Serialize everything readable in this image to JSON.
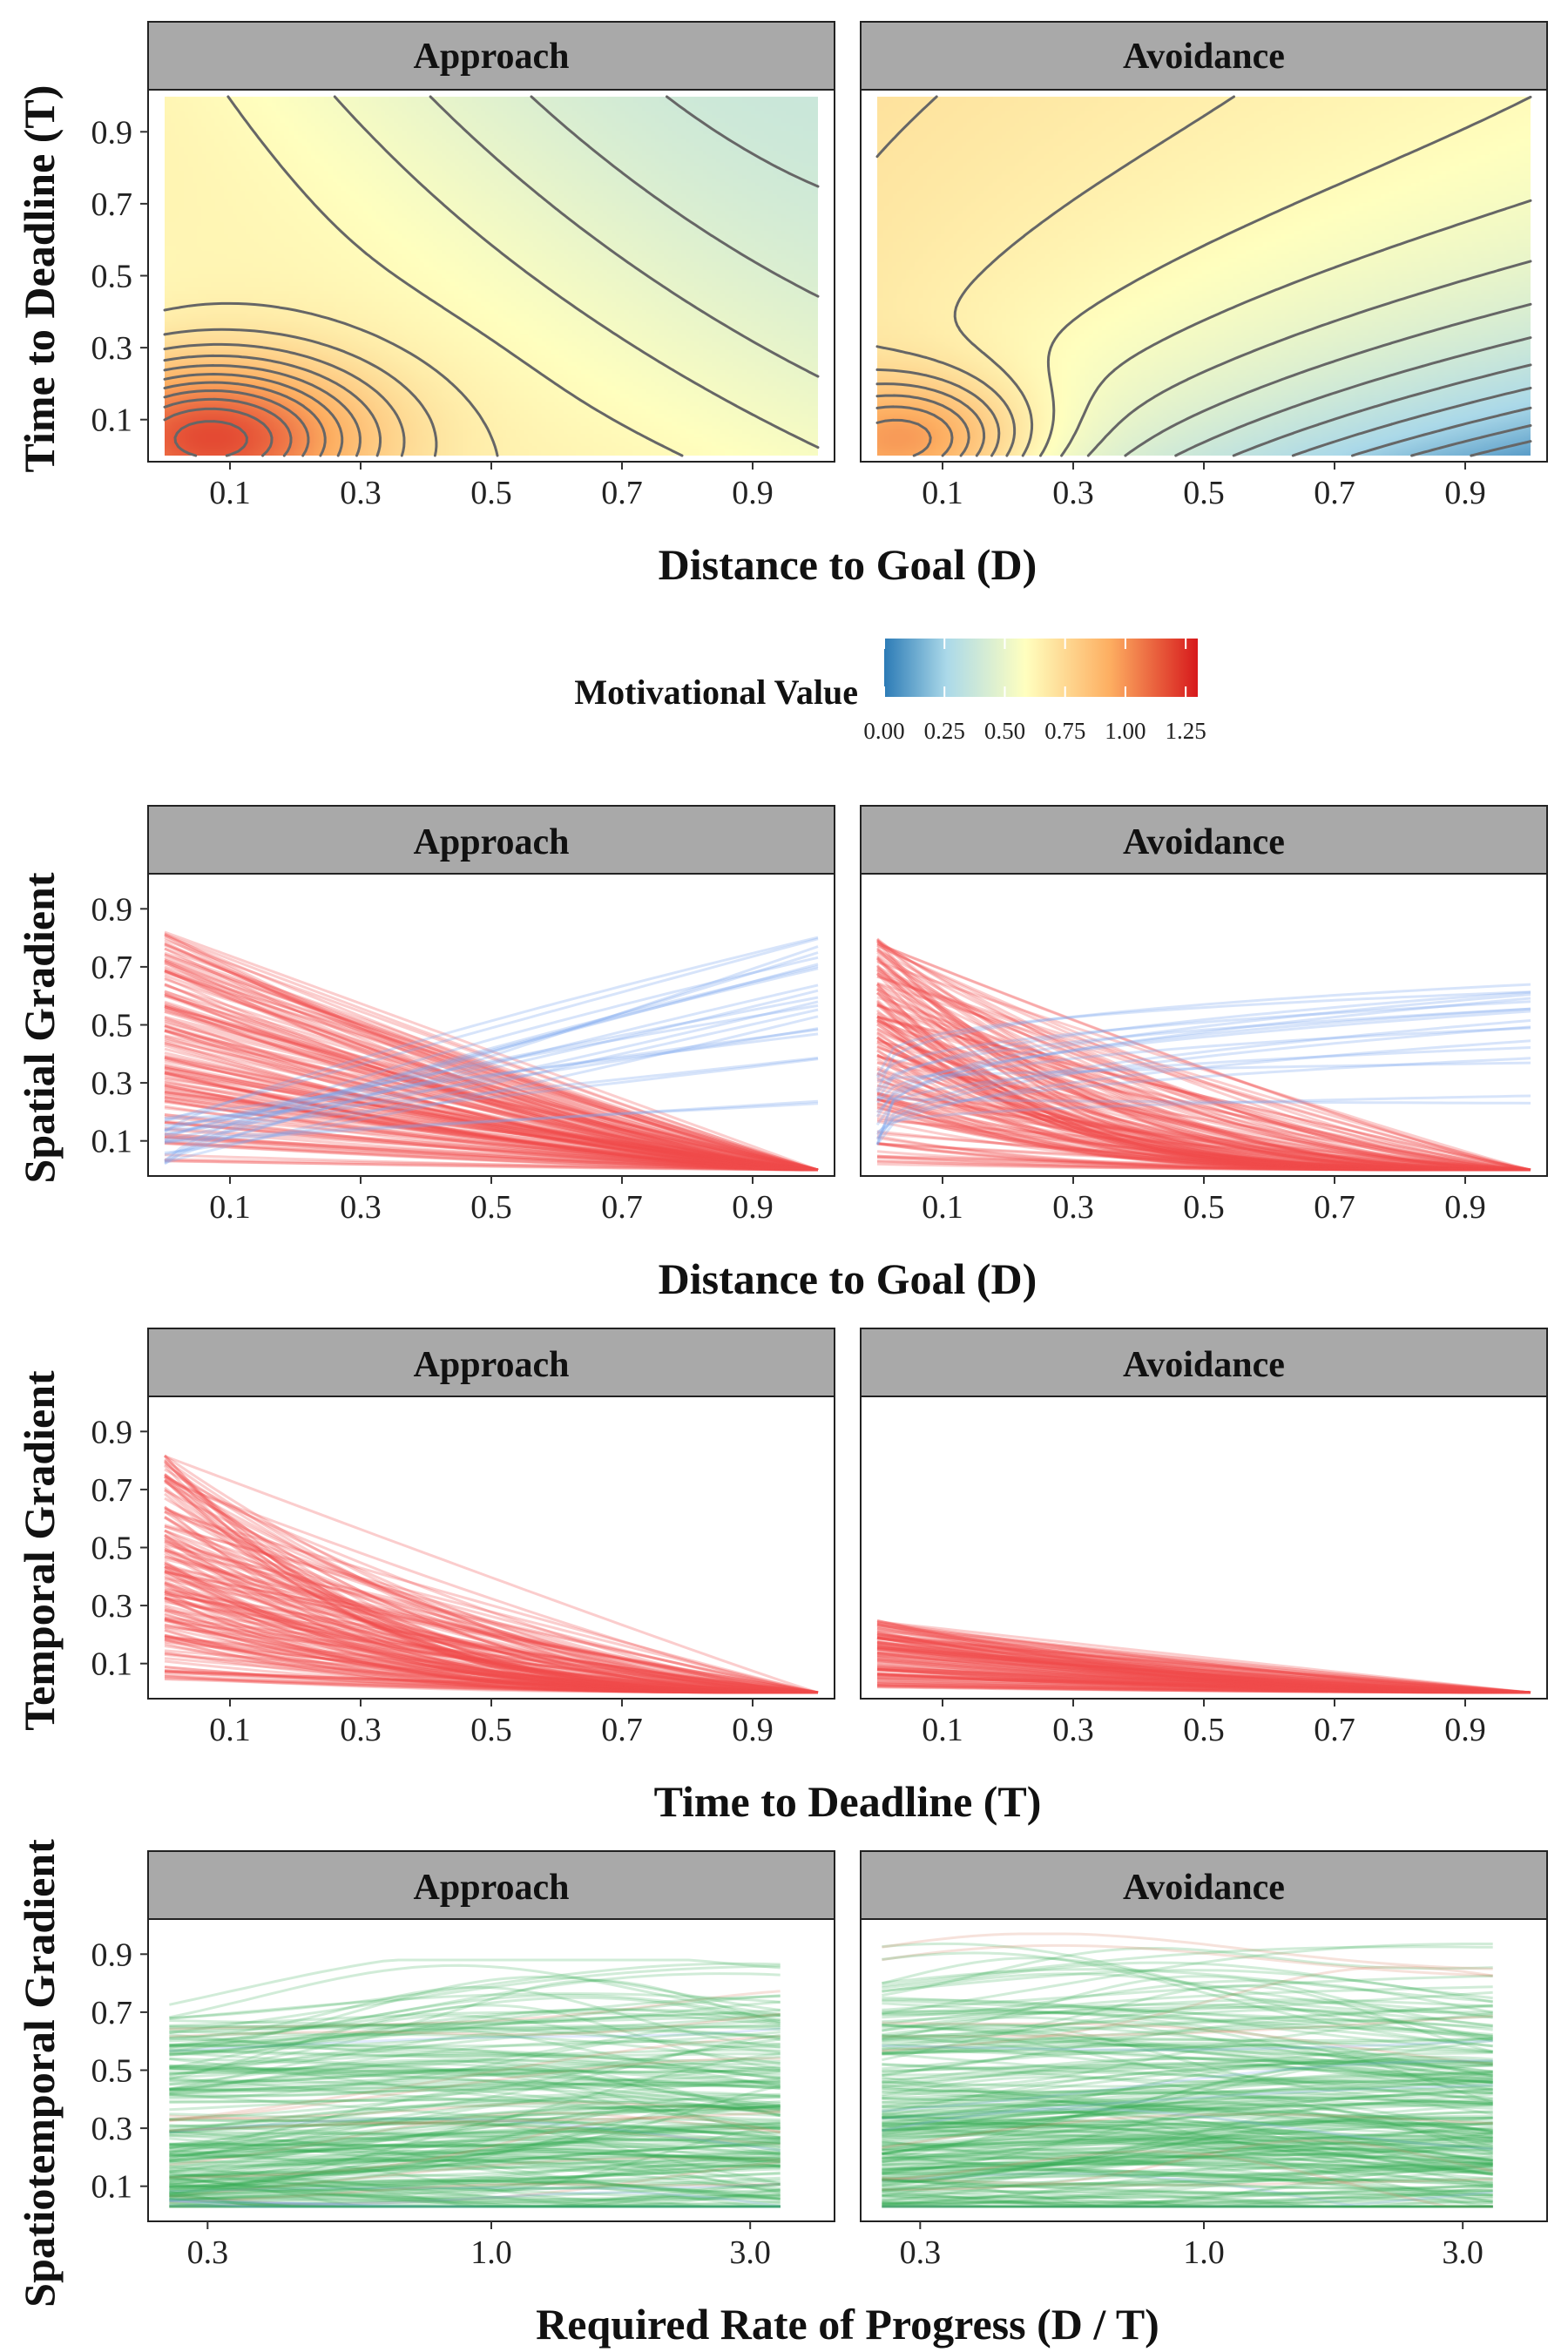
{
  "colors": {
    "strip_fill": "#a9a9a9",
    "contour": "#666666",
    "approach_line": "#f04d4d",
    "avoidance_line": "#7aa6f0",
    "spatiotemporal_line": "#2fa84f",
    "spatiotemporal_mixed": "#d67a5a",
    "colorscale": [
      "#2c7bb6",
      "#abd9e9",
      "#ffffbf",
      "#fdae61",
      "#d7191c"
    ]
  },
  "chart_data": [
    {
      "id": "motivational-value",
      "type": "heatmap",
      "facets": [
        "Approach",
        "Avoidance"
      ],
      "xlabel": "Distance to Goal (D)",
      "ylabel": "Time to Deadline (T)",
      "xlim": [
        0,
        1
      ],
      "ylim": [
        0,
        1
      ],
      "x_ticks": [
        "0.1",
        "0.3",
        "0.5",
        "0.7",
        "0.9"
      ],
      "y_ticks": [
        "0.1",
        "0.3",
        "0.5",
        "0.7",
        "0.9"
      ],
      "contours": true,
      "legend": {
        "title": "Motivational Value",
        "placement": "bottom",
        "range": [
          0,
          1.3
        ],
        "ticks": [
          "0.00",
          "0.25",
          "0.50",
          "0.75",
          "1.00",
          "1.25"
        ]
      }
    },
    {
      "id": "spatial-gradient",
      "type": "line",
      "facets": [
        "Approach",
        "Avoidance"
      ],
      "xlabel": "Distance to Goal (D)",
      "ylabel": "Spatial Gradient",
      "xlim": [
        0,
        1
      ],
      "ylim": [
        0,
        1
      ],
      "x_ticks": [
        "0.1",
        "0.3",
        "0.5",
        "0.7",
        "0.9"
      ],
      "y_ticks": [
        "0.1",
        "0.3",
        "0.5",
        "0.7",
        "0.9"
      ],
      "series": [
        {
          "facet": "Approach",
          "color": "red",
          "count": 150,
          "start_range": [
            0.02,
            0.82
          ],
          "end_value": 0.0,
          "shape": "decreasing"
        },
        {
          "facet": "Approach",
          "color": "blue",
          "count": 22,
          "start_range": [
            0.02,
            0.2
          ],
          "end_range": [
            0.2,
            0.84
          ],
          "shape": "increasing"
        },
        {
          "facet": "Avoidance",
          "color": "red",
          "count": 150,
          "start_range": [
            0.02,
            0.8
          ],
          "end_value": 0.0,
          "shape": "decreasing"
        },
        {
          "facet": "Avoidance",
          "color": "blue",
          "count": 18,
          "start_range": [
            0.05,
            0.35
          ],
          "end_range": [
            0.23,
            0.66
          ],
          "shape": "increasing"
        }
      ]
    },
    {
      "id": "temporal-gradient",
      "type": "line",
      "facets": [
        "Approach",
        "Avoidance"
      ],
      "xlabel": "Time to Deadline (T)",
      "ylabel": "Temporal Gradient",
      "xlim": [
        0,
        1
      ],
      "ylim": [
        0,
        1
      ],
      "x_ticks": [
        "0.1",
        "0.3",
        "0.5",
        "0.7",
        "0.9"
      ],
      "y_ticks": [
        "0.1",
        "0.3",
        "0.5",
        "0.7",
        "0.9"
      ],
      "series": [
        {
          "facet": "Approach",
          "color": "red",
          "count": 160,
          "start_range": [
            0.04,
            0.83
          ],
          "end_value": 0.0,
          "shape": "decreasing"
        },
        {
          "facet": "Avoidance",
          "color": "red",
          "count": 120,
          "start_range": [
            0.01,
            0.25
          ],
          "end_value": 0.0,
          "shape": "decreasing"
        }
      ]
    },
    {
      "id": "spatiotemporal-gradient",
      "type": "line",
      "facets": [
        "Approach",
        "Avoidance"
      ],
      "xlabel": "Required Rate of Progress (D / T)",
      "ylabel": "Spatiotemporal Gradient",
      "x_scale": "log",
      "xlim": [
        0.2,
        5
      ],
      "ylim": [
        0,
        1
      ],
      "x_ticks": [
        "0.3",
        "1.0",
        "3.0"
      ],
      "y_ticks": [
        "0.1",
        "0.3",
        "0.5",
        "0.7",
        "0.9"
      ],
      "series": [
        {
          "facet": "Approach",
          "color": "green",
          "count": 220,
          "value_range": [
            0.03,
            0.88
          ]
        },
        {
          "facet": "Avoidance",
          "color": "green",
          "count": 240,
          "value_range": [
            0.03,
            0.97
          ]
        }
      ]
    }
  ]
}
